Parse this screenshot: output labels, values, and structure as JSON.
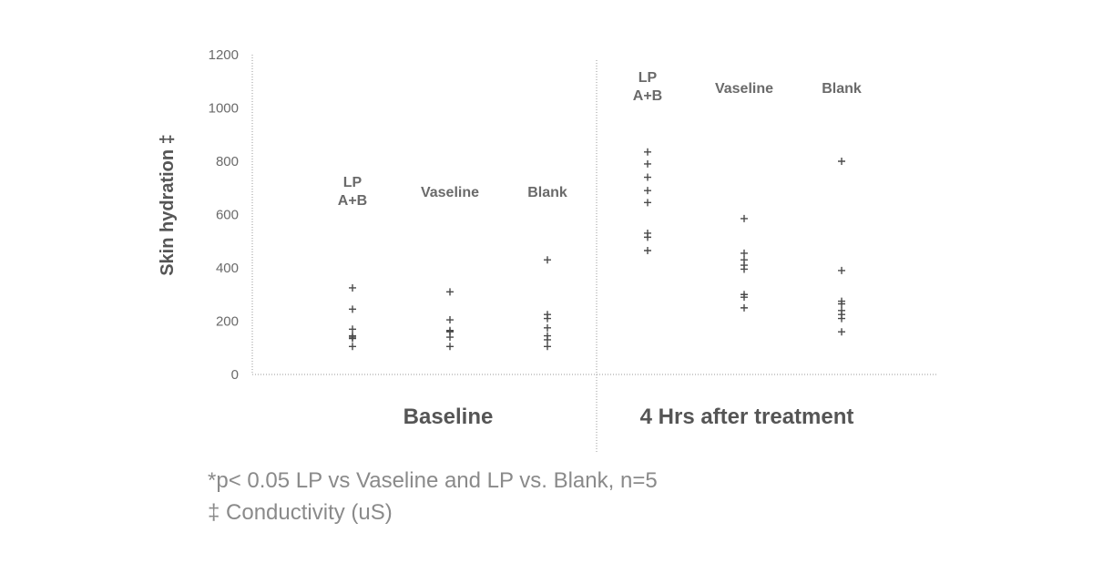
{
  "chart_data": {
    "type": "scatter",
    "ylabel": "Skin hydration ‡",
    "ylim": [
      0,
      1200
    ],
    "yticks": [
      "0",
      "200",
      "400",
      "600",
      "800",
      "1000",
      "1200"
    ],
    "grid": false,
    "sections": [
      {
        "label": "Baseline",
        "groups": [
          {
            "label": [
              "LP",
              "A+B"
            ],
            "values": [
              325,
              245,
              170,
              145,
              140,
              135,
              105
            ]
          },
          {
            "label": [
              "Vaseline"
            ],
            "values": [
              310,
              205,
              165,
              160,
              140,
              105
            ]
          },
          {
            "label": [
              "Blank"
            ],
            "values": [
              430,
              225,
              210,
              175,
              145,
              130,
              105
            ]
          }
        ]
      },
      {
        "label": "4 Hrs after treatment",
        "groups": [
          {
            "label": [
              "LP",
              "A+B"
            ],
            "values": [
              835,
              790,
              740,
              690,
              645,
              530,
              515,
              465
            ]
          },
          {
            "label": [
              "Vaseline"
            ],
            "values": [
              585,
              455,
              430,
              410,
              395,
              300,
              290,
              250
            ]
          },
          {
            "label": [
              "Blank"
            ],
            "values": [
              800,
              390,
              275,
              265,
              240,
              225,
              210,
              160
            ]
          }
        ]
      }
    ]
  },
  "footnotes": {
    "line1": "*p< 0.05 LP vs Vaseline and LP vs. Blank, n=5",
    "line2": "‡ Conductivity (uS)"
  }
}
